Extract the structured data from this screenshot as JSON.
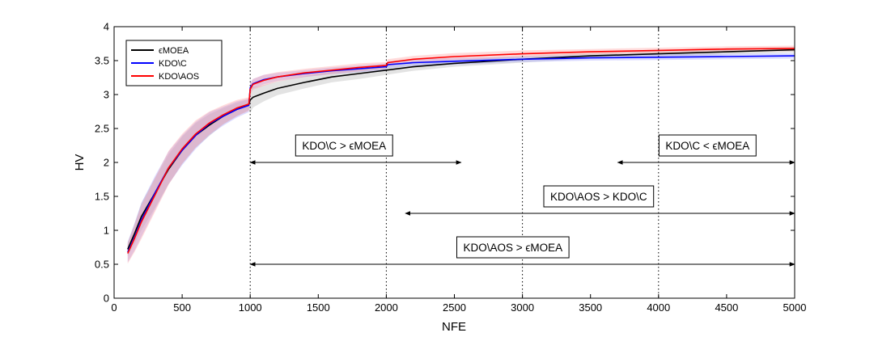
{
  "chart_data": {
    "type": "line",
    "xlabel": "NFE",
    "ylabel": "HV",
    "xlim": [
      0,
      5000
    ],
    "ylim": [
      0,
      4
    ],
    "x_ticks": [
      0,
      500,
      1000,
      1500,
      2000,
      2500,
      3000,
      3500,
      4000,
      4500,
      5000
    ],
    "y_ticks": [
      0,
      0.5,
      1,
      1.5,
      2,
      2.5,
      3,
      3.5,
      4
    ],
    "vlines": [
      1000,
      2000,
      3000,
      4000
    ],
    "grid": false,
    "legend_position": "top-left",
    "series": [
      {
        "name": "ϵMOEA",
        "color": "#000000",
        "band_color": "#b0b0b0",
        "x": [
          100,
          150,
          200,
          300,
          400,
          500,
          600,
          700,
          800,
          900,
          990,
          1000,
          1020,
          1100,
          1200,
          1400,
          1600,
          1800,
          2000,
          2200,
          2500,
          3000,
          3500,
          4000,
          4500,
          5000
        ],
        "y": [
          0.72,
          0.95,
          1.2,
          1.55,
          1.9,
          2.18,
          2.4,
          2.55,
          2.68,
          2.78,
          2.85,
          2.92,
          2.96,
          3.02,
          3.09,
          3.18,
          3.26,
          3.31,
          3.36,
          3.41,
          3.46,
          3.52,
          3.57,
          3.6,
          3.63,
          3.66
        ],
        "band": [
          0.1,
          0.15,
          0.2,
          0.22,
          0.22,
          0.2,
          0.18,
          0.16,
          0.12,
          0.1,
          0.08,
          0.2,
          0.15,
          0.12,
          0.1,
          0.09,
          0.08,
          0.08,
          0.07,
          0.06,
          0.05,
          0.05,
          0.04,
          0.04,
          0.04,
          0.04
        ]
      },
      {
        "name": "KDO\\C",
        "color": "#0000ff",
        "band_color": "#9999ff",
        "x": [
          100,
          150,
          200,
          300,
          400,
          500,
          600,
          700,
          800,
          900,
          990,
          1000,
          1020,
          1100,
          1200,
          1400,
          1600,
          1800,
          2000,
          2010,
          2200,
          2500,
          3000,
          3500,
          4000,
          4500,
          5000
        ],
        "y": [
          0.68,
          0.9,
          1.15,
          1.55,
          1.92,
          2.18,
          2.4,
          2.57,
          2.68,
          2.78,
          2.84,
          3.1,
          3.16,
          3.22,
          3.26,
          3.31,
          3.35,
          3.38,
          3.41,
          3.44,
          3.47,
          3.49,
          3.52,
          3.54,
          3.55,
          3.56,
          3.57
        ],
        "band": [
          0.15,
          0.2,
          0.25,
          0.25,
          0.24,
          0.22,
          0.2,
          0.17,
          0.14,
          0.12,
          0.1,
          0.08,
          0.07,
          0.07,
          0.06,
          0.05,
          0.05,
          0.05,
          0.05,
          0.05,
          0.05,
          0.05,
          0.04,
          0.04,
          0.04,
          0.04,
          0.04
        ]
      },
      {
        "name": "KDO\\AOS",
        "color": "#ff0000",
        "band_color": "#ff9999",
        "x": [
          100,
          150,
          200,
          300,
          400,
          500,
          600,
          700,
          800,
          900,
          990,
          1000,
          1020,
          1100,
          1200,
          1400,
          1600,
          1800,
          2000,
          2010,
          2200,
          2500,
          3000,
          3500,
          4000,
          4500,
          5000
        ],
        "y": [
          0.66,
          0.88,
          1.12,
          1.52,
          1.92,
          2.2,
          2.42,
          2.58,
          2.7,
          2.8,
          2.86,
          3.08,
          3.15,
          3.21,
          3.26,
          3.32,
          3.36,
          3.4,
          3.43,
          3.47,
          3.52,
          3.56,
          3.6,
          3.63,
          3.65,
          3.67,
          3.68
        ],
        "band": [
          0.15,
          0.2,
          0.25,
          0.25,
          0.25,
          0.22,
          0.2,
          0.17,
          0.14,
          0.12,
          0.1,
          0.08,
          0.08,
          0.08,
          0.07,
          0.06,
          0.06,
          0.06,
          0.05,
          0.05,
          0.05,
          0.05,
          0.05,
          0.04,
          0.04,
          0.04,
          0.04
        ]
      }
    ],
    "annotations": [
      {
        "text": "KDO\\C > ϵMOEA",
        "x_start": 1000,
        "x_end": 2550,
        "y": 2.0,
        "label_x": 1690,
        "label_y": 2.25
      },
      {
        "text": "KDO\\C < ϵMOEA",
        "x_start": 3700,
        "x_end": 5000,
        "y": 2.0,
        "label_x": 4360,
        "label_y": 2.25
      },
      {
        "text": "KDO\\AOS > KDO\\C",
        "x_start": 2140,
        "x_end": 5000,
        "y": 1.25,
        "label_x": 3560,
        "label_y": 1.5
      },
      {
        "text": "KDO\\AOS > ϵMOEA",
        "x_start": 1000,
        "x_end": 5000,
        "y": 0.5,
        "label_x": 2930,
        "label_y": 0.75
      }
    ]
  }
}
